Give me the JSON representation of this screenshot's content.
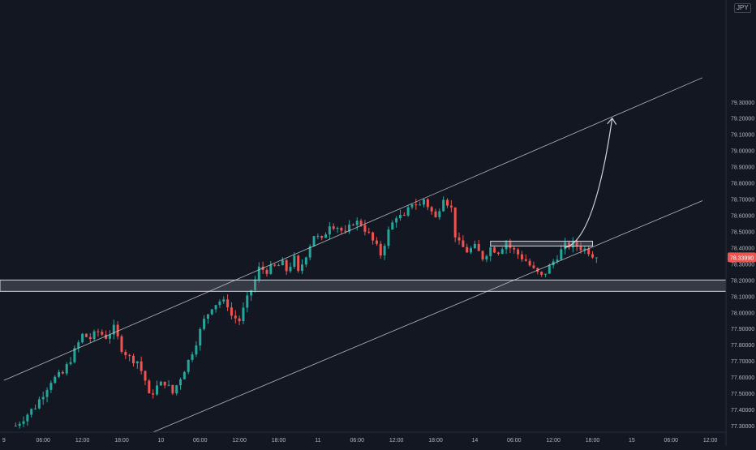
{
  "header": {
    "currency": "JPY"
  },
  "colors": {
    "background": "#131722",
    "up": "#26a69a",
    "down": "#ef5350",
    "axis_text": "#b2b5be",
    "drawing": "#d1d4dc",
    "zone_fill": "#787b86",
    "price_badge": "#ef5350"
  },
  "chart_data": {
    "type": "candlestick",
    "symbol_quote": "JPY",
    "x_ticks": [
      "9",
      "06:00",
      "12:00",
      "18:00",
      "10",
      "06:00",
      "12:00",
      "18:00",
      "11",
      "06:00",
      "12:00",
      "18:00",
      "14",
      "06:00",
      "12:00",
      "18:00",
      "15",
      "06:00",
      "12:00"
    ],
    "y_ticks": [
      "79.30000",
      "79.20000",
      "79.10000",
      "79.00000",
      "78.90000",
      "78.80000",
      "78.70000",
      "78.60000",
      "78.50000",
      "78.40000",
      "78.30000",
      "78.20000",
      "78.10000",
      "78.00000",
      "77.90000",
      "77.80000",
      "77.70000",
      "77.60000",
      "77.50000",
      "77.40000",
      "77.30000"
    ],
    "y_tick_values": [
      79.3,
      79.2,
      79.1,
      79.0,
      78.9,
      78.8,
      78.7,
      78.6,
      78.5,
      78.4,
      78.3,
      78.2,
      78.1,
      78.0,
      77.9,
      77.8,
      77.7,
      77.6,
      77.5,
      77.4,
      77.3
    ],
    "x_tick_index": [
      0,
      10,
      20,
      30,
      40,
      50,
      60,
      70,
      80,
      90,
      100,
      110,
      120,
      130,
      140,
      150,
      160,
      170,
      180
    ],
    "ylim": [
      77.26,
      79.93
    ],
    "xlim": [
      -1,
      184
    ],
    "last_price": 78.3399,
    "last_price_label": "78.33990",
    "close_path": [
      [
        3,
        77.3
      ],
      [
        8,
        77.42
      ],
      [
        12,
        77.58
      ],
      [
        15,
        77.62
      ],
      [
        18,
        77.76
      ],
      [
        20,
        77.86
      ],
      [
        22,
        77.84
      ],
      [
        24,
        77.88
      ],
      [
        26,
        77.85
      ],
      [
        28,
        77.9
      ],
      [
        30,
        77.78
      ],
      [
        32,
        77.72
      ],
      [
        34,
        77.7
      ],
      [
        36,
        77.58
      ],
      [
        37,
        77.48
      ],
      [
        39,
        77.54
      ],
      [
        41,
        77.57
      ],
      [
        43,
        77.5
      ],
      [
        45,
        77.6
      ],
      [
        47,
        77.7
      ],
      [
        49,
        77.82
      ],
      [
        51,
        77.95
      ],
      [
        53,
        78.04
      ],
      [
        55,
        78.07
      ],
      [
        57,
        78.05
      ],
      [
        58,
        77.98
      ],
      [
        60,
        77.95
      ],
      [
        62,
        78.08
      ],
      [
        64,
        78.2
      ],
      [
        65,
        78.27
      ],
      [
        67,
        78.26
      ],
      [
        69,
        78.28
      ],
      [
        71,
        78.3
      ],
      [
        72,
        78.26
      ],
      [
        74,
        78.33
      ],
      [
        75,
        78.24
      ],
      [
        77,
        78.36
      ],
      [
        79,
        78.48
      ],
      [
        81,
        78.44
      ],
      [
        83,
        78.55
      ],
      [
        85,
        78.53
      ],
      [
        87,
        78.48
      ],
      [
        89,
        78.56
      ],
      [
        91,
        78.55
      ],
      [
        93,
        78.48
      ],
      [
        95,
        78.4
      ],
      [
        96,
        78.36
      ],
      [
        98,
        78.5
      ],
      [
        100,
        78.6
      ],
      [
        102,
        78.58
      ],
      [
        104,
        78.68
      ],
      [
        106,
        78.66
      ],
      [
        107,
        78.7
      ],
      [
        109,
        78.62
      ],
      [
        110,
        78.58
      ],
      [
        112,
        78.72
      ],
      [
        114,
        78.64
      ],
      [
        115,
        78.48
      ],
      [
        116,
        78.42
      ],
      [
        118,
        78.38
      ],
      [
        120,
        78.4
      ],
      [
        122,
        78.34
      ],
      [
        124,
        78.4
      ],
      [
        126,
        78.38
      ],
      [
        128,
        78.44
      ],
      [
        129,
        78.4
      ],
      [
        131,
        78.36
      ],
      [
        133,
        78.32
      ],
      [
        135,
        78.26
      ],
      [
        137,
        78.22
      ],
      [
        139,
        78.28
      ],
      [
        141,
        78.35
      ],
      [
        143,
        78.41
      ],
      [
        145,
        78.42
      ],
      [
        147,
        78.4
      ],
      [
        149,
        78.38
      ],
      [
        151,
        78.34
      ]
    ],
    "annotations": {
      "channel_upper": [
        [
          0,
          77.58
        ],
        [
          178,
          79.45
        ]
      ],
      "channel_lower": [
        [
          38,
          77.26
        ],
        [
          178,
          78.69
        ]
      ],
      "support_zone": [
        78.13,
        78.2
      ],
      "resistance_box": {
        "x": [
          124,
          150
        ],
        "y": [
          78.41,
          78.44
        ]
      },
      "projection_arrow": [
        [
          143,
          78.4
        ],
        [
          148,
          78.43
        ],
        [
          152,
          78.7
        ],
        [
          155,
          79.2
        ]
      ]
    }
  }
}
